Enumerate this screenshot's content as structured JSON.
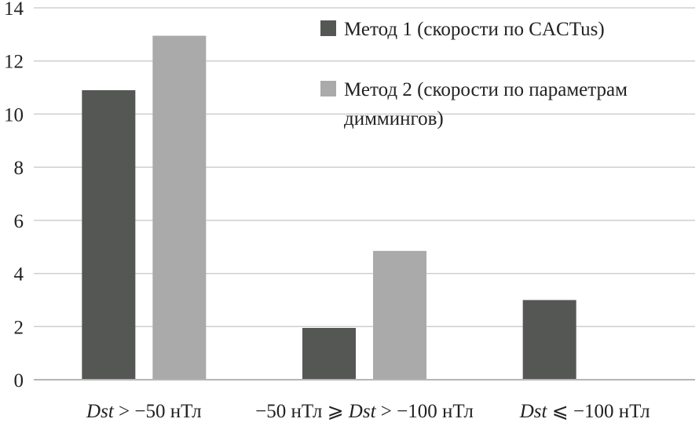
{
  "chart_data": {
    "type": "bar",
    "title": "",
    "xlabel": "",
    "ylabel": "",
    "ylim": [
      0,
      14
    ],
    "yticks": [
      0,
      2,
      4,
      6,
      8,
      10,
      12,
      14
    ],
    "grid": "horizontal",
    "legend_position": "top-right",
    "categories": [
      "Dst > −50 нТл",
      "−50 нТл ⩾ Dst > −100 нТл",
      "Dst ⩽ −100 нТл"
    ],
    "series": [
      {
        "name": "Метод 1 (скорости по CACTus)",
        "color": "#555755",
        "values": [
          10.9,
          1.95,
          3.0
        ]
      },
      {
        "name": "Метод 2 (скорости по параметрам диммингов)",
        "color": "#aaaaaa",
        "values": [
          12.95,
          4.85,
          0
        ]
      }
    ],
    "legend_lines": [
      [
        "Метод 1 (скорости по CACTus)"
      ],
      [
        "Метод 2 (скорости по параметрам",
        "диммингов)"
      ]
    ]
  }
}
